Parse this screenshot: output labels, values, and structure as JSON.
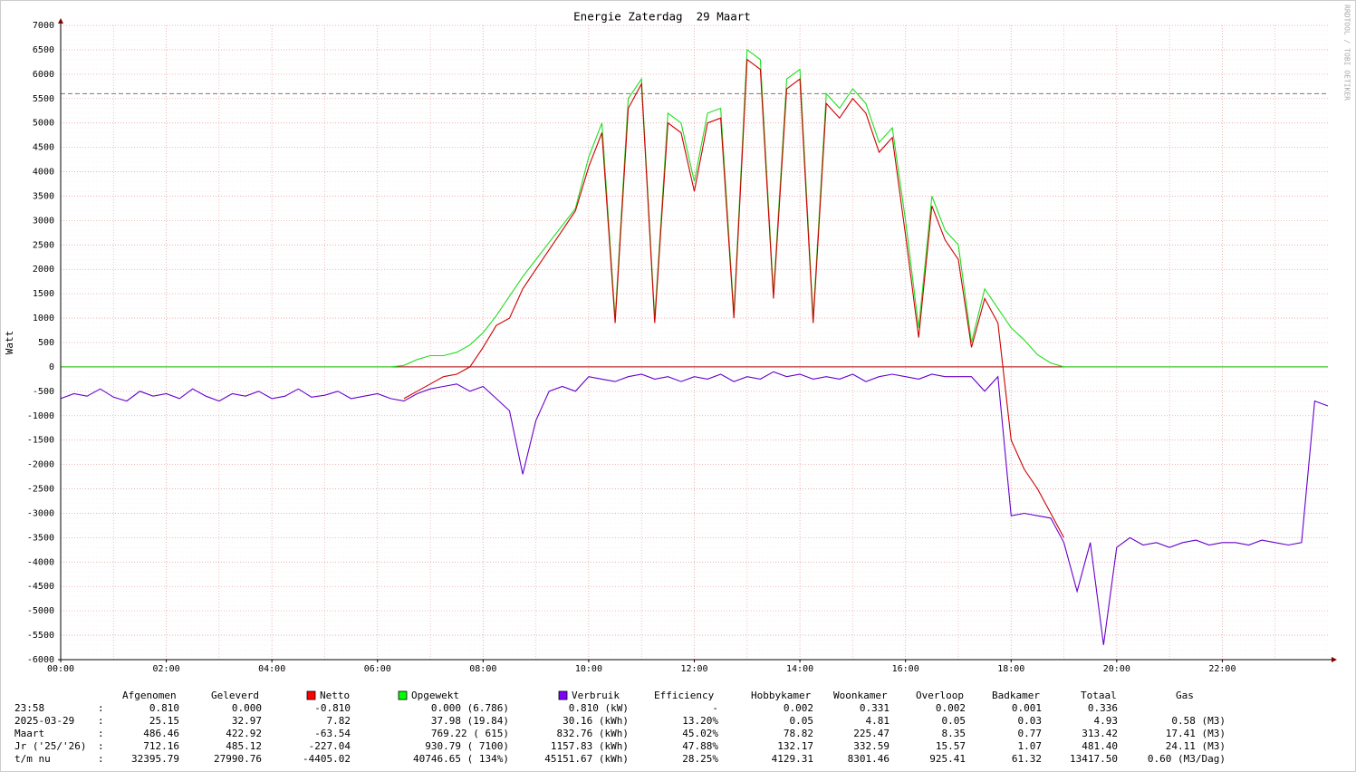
{
  "chart_data": {
    "type": "line",
    "title": "Energie Zaterdag  29 Maart",
    "y_label": "Watt",
    "watermark": "RRDTOOL / TOBI OETIKER",
    "xlim": [
      0,
      1440
    ],
    "xticks": [
      {
        "value": 0,
        "label": "00:00"
      },
      {
        "value": 120,
        "label": "02:00"
      },
      {
        "value": 240,
        "label": "04:00"
      },
      {
        "value": 360,
        "label": "06:00"
      },
      {
        "value": 480,
        "label": "08:00"
      },
      {
        "value": 600,
        "label": "10:00"
      },
      {
        "value": 720,
        "label": "12:00"
      },
      {
        "value": 840,
        "label": "14:00"
      },
      {
        "value": 960,
        "label": "16:00"
      },
      {
        "value": 1080,
        "label": "18:00"
      },
      {
        "value": 1200,
        "label": "20:00"
      },
      {
        "value": 1320,
        "label": "22:00"
      }
    ],
    "ylim": [
      -6000,
      7000
    ],
    "yticks": [
      -6000,
      -5500,
      -5000,
      -4500,
      -4000,
      -3500,
      -3000,
      -2500,
      -2000,
      -1500,
      -1000,
      -500,
      0,
      500,
      1000,
      1500,
      2000,
      2500,
      3000,
      3500,
      4000,
      4500,
      5000,
      5500,
      6000,
      6500,
      7000
    ],
    "grid": true,
    "reference_line": 5600,
    "x": [
      0,
      15,
      30,
      45,
      60,
      75,
      90,
      105,
      120,
      135,
      150,
      165,
      180,
      195,
      210,
      225,
      240,
      255,
      270,
      285,
      300,
      315,
      330,
      345,
      360,
      375,
      390,
      405,
      420,
      435,
      450,
      465,
      480,
      495,
      510,
      525,
      540,
      555,
      570,
      585,
      600,
      615,
      630,
      645,
      660,
      675,
      690,
      705,
      720,
      735,
      750,
      765,
      780,
      795,
      810,
      825,
      840,
      855,
      870,
      885,
      900,
      915,
      930,
      945,
      960,
      975,
      990,
      1005,
      1020,
      1035,
      1050,
      1065,
      1080,
      1095,
      1110,
      1125,
      1140,
      1155,
      1170,
      1185,
      1200,
      1215,
      1230,
      1245,
      1260,
      1275,
      1290,
      1305,
      1320,
      1335,
      1350,
      1365,
      1380,
      1395,
      1410,
      1425,
      1440
    ],
    "series": [
      {
        "name": "Opgewekt",
        "color": "#22dd22",
        "swatch": "#00ff00",
        "values": [
          0,
          0,
          0,
          0,
          0,
          0,
          0,
          0,
          0,
          0,
          0,
          0,
          0,
          0,
          0,
          0,
          0,
          0,
          0,
          0,
          0,
          0,
          0,
          0,
          0,
          0,
          30,
          150,
          230,
          230,
          300,
          450,
          700,
          1050,
          1450,
          1850,
          2200,
          2550,
          2900,
          3250,
          4300,
          5000,
          1000,
          5500,
          5900,
          1000,
          5200,
          5000,
          3800,
          5200,
          5300,
          1100,
          6500,
          6300,
          1500,
          5900,
          6100,
          1000,
          5600,
          5300,
          5700,
          5400,
          4600,
          4900,
          3000,
          800,
          3500,
          2800,
          2500,
          500,
          1600,
          1200,
          800,
          550,
          250,
          80,
          0,
          0,
          0,
          0,
          0,
          0,
          0,
          0,
          0,
          0,
          0,
          0,
          0,
          0,
          0,
          0,
          0,
          0,
          0,
          0,
          0
        ]
      },
      {
        "name": "Netto",
        "color": "#cc0000",
        "swatch": "#ff0000",
        "values": [
          null,
          null,
          null,
          null,
          null,
          null,
          null,
          null,
          null,
          null,
          null,
          null,
          null,
          null,
          null,
          null,
          null,
          null,
          null,
          null,
          null,
          null,
          null,
          null,
          null,
          null,
          -650,
          -500,
          -350,
          -200,
          -150,
          0,
          400,
          850,
          1000,
          1600,
          2000,
          2400,
          2800,
          3200,
          4100,
          4800,
          900,
          5300,
          5800,
          900,
          5000,
          4800,
          3600,
          5000,
          5100,
          1000,
          6300,
          6100,
          1400,
          5700,
          5900,
          900,
          5400,
          5100,
          5500,
          5200,
          4400,
          4700,
          2700,
          600,
          3300,
          2600,
          2200,
          400,
          1400,
          900,
          -1500,
          -2100,
          -2500,
          -3000,
          -3500,
          null,
          null,
          null,
          null,
          null,
          null,
          null,
          null,
          null,
          null,
          null,
          null,
          null,
          null,
          null,
          null,
          null,
          null,
          null,
          null
        ]
      },
      {
        "name": "Verbruik",
        "color": "#6600cc",
        "swatch": "#7f00ff",
        "values": [
          -650,
          -550,
          -600,
          -450,
          -620,
          -700,
          -500,
          -600,
          -550,
          -650,
          -450,
          -600,
          -700,
          -550,
          -600,
          -500,
          -650,
          -600,
          -450,
          -620,
          -580,
          -500,
          -650,
          -600,
          -550,
          -650,
          -700,
          -550,
          -450,
          -400,
          -350,
          -500,
          -400,
          -650,
          -900,
          -2200,
          -1100,
          -500,
          -400,
          -500,
          -200,
          -250,
          -300,
          -200,
          -150,
          -250,
          -200,
          -300,
          -200,
          -250,
          -150,
          -300,
          -200,
          -250,
          -100,
          -200,
          -150,
          -250,
          -200,
          -250,
          -150,
          -300,
          -200,
          -150,
          -200,
          -250,
          -150,
          -200,
          -200,
          -200,
          -500,
          -200,
          -3050,
          -3000,
          -3050,
          -3100,
          -3600,
          -4600,
          -3600,
          -5700,
          -3700,
          -3500,
          -3650,
          -3600,
          -3700,
          -3600,
          -3550,
          -3650,
          -3600,
          -3600,
          -3650,
          -3550,
          -3600,
          -3650,
          -3600,
          -700,
          -800
        ]
      }
    ],
    "table": {
      "headers": [
        "Afgenomen",
        "Geleverd",
        "Netto",
        "Opgewekt",
        "Verbruik",
        "Efficiency",
        "Hobbykamer",
        "Woonkamer",
        "Overloop",
        "Badkamer",
        "Totaal",
        "Gas"
      ],
      "rows": [
        [
          "23:58",
          ":",
          "0.810",
          "0.000",
          "-0.810",
          "0.000 (6.786)",
          "0.810 (kW)",
          "-",
          "0.002",
          "0.331",
          "0.002",
          "0.001",
          "0.336"
        ],
        [
          "2025-03-29",
          ":",
          "25.15",
          "32.97",
          "7.82",
          "37.98 (19.84)",
          "30.16 (kWh)",
          "13.20%",
          "0.05",
          "4.81",
          "0.05",
          "0.03",
          "4.93",
          "0.58 (M3)"
        ],
        [
          "Maart",
          ":",
          "486.46",
          "422.92",
          "-63.54",
          "769.22 ( 615)",
          "832.76 (kWh)",
          "45.02%",
          "78.82",
          "225.47",
          "8.35",
          "0.77",
          "313.42",
          "17.41 (M3)"
        ],
        [
          "Jr ('25/'26)",
          ":",
          "712.16",
          "485.12",
          "-227.04",
          "930.79 ( 7100)",
          "1157.83 (kWh)",
          "47.88%",
          "132.17",
          "332.59",
          "15.57",
          "1.07",
          "481.40",
          "24.11 (M3)"
        ],
        [
          "t/m nu",
          ":",
          "32395.79",
          "27990.76",
          "-4405.02",
          "40746.65 ( 134%)",
          "45151.67 (kWh)",
          "28.25%",
          "4129.31",
          "8301.46",
          "925.41",
          "61.32",
          "13417.50",
          "0.60 (M3/Dag)"
        ]
      ]
    }
  }
}
